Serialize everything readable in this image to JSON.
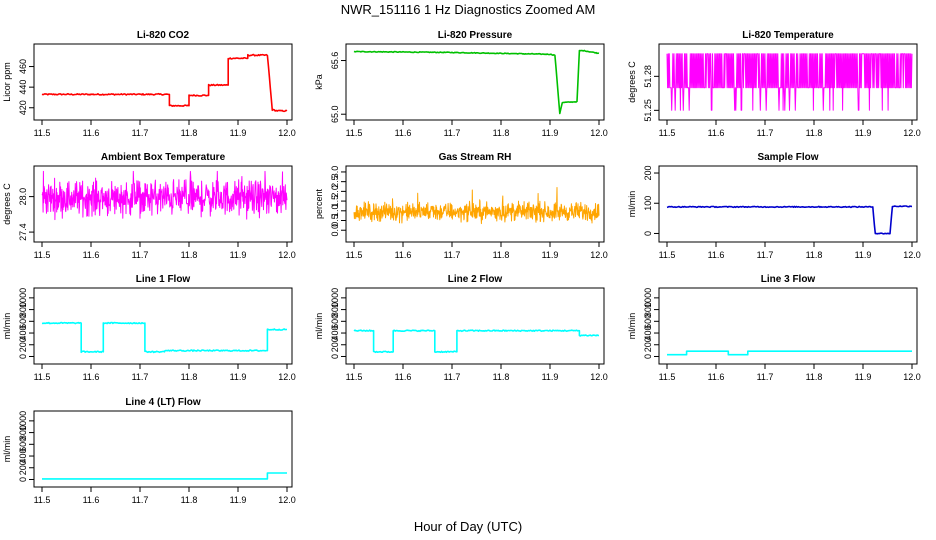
{
  "figure": {
    "title": "NWR_151116  1 Hz Diagnostics Zoomed AM",
    "xlabel": "Hour of Day (UTC)"
  },
  "chart_data": [
    {
      "type": "line",
      "title": "Li-820 CO2",
      "ylabel": "Licor ppm",
      "color": "#ff0000",
      "xlim": [
        11.5,
        12.0
      ],
      "ylim": [
        412,
        478
      ],
      "xticks": [
        "11.5",
        "11.6",
        "11.7",
        "11.8",
        "11.9",
        "12.0"
      ],
      "yticks": [
        420,
        440,
        460
      ],
      "series": [
        {
          "name": "CO2",
          "x": [
            11.5,
            11.76,
            11.76,
            11.8,
            11.8,
            11.84,
            11.84,
            11.88,
            11.88,
            11.92,
            11.92,
            11.96,
            11.97,
            11.98,
            12.0
          ],
          "y": [
            433,
            433,
            422,
            422,
            432,
            432,
            442,
            442,
            468,
            468,
            471,
            471,
            418,
            417,
            417
          ],
          "noise": 0.6
        }
      ]
    },
    {
      "type": "line",
      "title": "Li-820 Pressure",
      "ylabel": "kPa",
      "color": "#00c000",
      "xlim": [
        11.5,
        12.0
      ],
      "ylim": [
        64.98,
        65.74
      ],
      "xticks": [
        "11.5",
        "11.6",
        "11.7",
        "11.8",
        "11.9",
        "12.0"
      ],
      "yticks": [
        65.0,
        65.6
      ],
      "ytickLabels": [
        "65.0",
        "65.6"
      ],
      "series": [
        {
          "name": "pressure",
          "x": [
            11.5,
            11.7,
            11.9,
            11.91,
            11.92,
            11.925,
            11.955,
            11.96,
            11.97,
            12.0
          ],
          "y": [
            65.7,
            65.69,
            65.67,
            65.66,
            65.01,
            65.13,
            65.14,
            65.71,
            65.71,
            65.68
          ],
          "noise": 0.004
        }
      ]
    },
    {
      "type": "line",
      "title": "Li-820 Temperature",
      "ylabel": "degrees C",
      "color": "#ff00ff",
      "xlim": [
        11.5,
        12.0
      ],
      "ylim": [
        51.245,
        51.305
      ],
      "xticks": [
        "11.5",
        "11.6",
        "11.7",
        "11.8",
        "11.9",
        "12.0"
      ],
      "yticks": [
        51.25,
        51.28
      ],
      "ytickLabels": [
        "51.25",
        "51.28"
      ],
      "series": [
        {
          "name": "temperature",
          "mode": "quantized",
          "levels": [
            51.25,
            51.27,
            51.3
          ],
          "x": [
            11.5,
            12.0
          ]
        }
      ]
    },
    {
      "type": "line",
      "title": "Ambient Box Temperature",
      "ylabel": "degrees C",
      "color": "#ff00ff",
      "xlim": [
        11.5,
        12.0
      ],
      "ylim": [
        27.3,
        28.45
      ],
      "xticks": [
        "11.5",
        "11.6",
        "11.7",
        "11.8",
        "11.9",
        "12.0"
      ],
      "yticks": [
        27.4,
        28.0
      ],
      "ytickLabels": [
        "27.4",
        "28.0"
      ],
      "series": [
        {
          "name": "box_temp",
          "mode": "noisy",
          "x": [
            11.5,
            12.0
          ],
          "mean": 27.98,
          "spread": 0.22
        }
      ]
    },
    {
      "type": "line",
      "title": "Gas Stream RH",
      "ylabel": "percent",
      "color": "#ffa500",
      "xlim": [
        11.5,
        12.0
      ],
      "ylim": [
        -0.4,
        3.1
      ],
      "xticks": [
        "11.5",
        "11.6",
        "11.7",
        "11.8",
        "11.9",
        "12.0"
      ],
      "yticks": [
        0.0,
        0.5,
        1.0,
        1.5,
        2.0,
        2.5,
        3.0
      ],
      "ytickLabels": [
        "0.0",
        "0.5",
        "1.0",
        "1.5",
        "2.0",
        "2.5",
        "3.0"
      ],
      "series": [
        {
          "name": "rh",
          "mode": "noisy",
          "x": [
            11.5,
            12.0
          ],
          "mean": 0.95,
          "spread": 0.35
        }
      ]
    },
    {
      "type": "line",
      "title": "Sample Flow",
      "ylabel": "ml/min",
      "color": "#0000cd",
      "xlim": [
        11.5,
        12.0
      ],
      "ylim": [
        -15,
        210
      ],
      "xticks": [
        "11.5",
        "11.6",
        "11.7",
        "11.8",
        "11.9",
        "12.0"
      ],
      "yticks": [
        0,
        100,
        200
      ],
      "series": [
        {
          "name": "sample_flow",
          "x": [
            11.5,
            11.92,
            11.925,
            11.955,
            11.96,
            12.0
          ],
          "y": [
            88,
            88,
            0,
            0,
            90,
            90
          ],
          "noise": 1.5
        }
      ]
    },
    {
      "type": "line",
      "title": "Line 1 Flow",
      "ylabel": "ml/min",
      "color": "#00ffff",
      "xlim": [
        11.5,
        12.0
      ],
      "ylim": [
        -60,
        1100
      ],
      "xticks": [
        "11.5",
        "11.6",
        "11.7",
        "11.8",
        "11.9",
        "12.0"
      ],
      "yticks": [
        0,
        200,
        400,
        600,
        800,
        1000
      ],
      "series": [
        {
          "name": "line1",
          "x": [
            11.5,
            11.58,
            11.58,
            11.625,
            11.625,
            11.71,
            11.71,
            11.75,
            11.75,
            11.96,
            11.96,
            12.0
          ],
          "y": [
            570,
            570,
            80,
            80,
            570,
            570,
            80,
            80,
            100,
            100,
            460,
            460
          ],
          "noise": 10
        }
      ]
    },
    {
      "type": "line",
      "title": "Line 2 Flow",
      "ylabel": "ml/min",
      "color": "#00ffff",
      "xlim": [
        11.5,
        12.0
      ],
      "ylim": [
        -60,
        1100
      ],
      "xticks": [
        "11.5",
        "11.6",
        "11.7",
        "11.8",
        "11.9",
        "12.0"
      ],
      "yticks": [
        0,
        200,
        400,
        600,
        800,
        1000
      ],
      "series": [
        {
          "name": "line2",
          "x": [
            11.5,
            11.54,
            11.54,
            11.58,
            11.58,
            11.665,
            11.665,
            11.71,
            11.71,
            11.96,
            11.96,
            12.0
          ],
          "y": [
            440,
            440,
            80,
            80,
            440,
            440,
            80,
            80,
            440,
            440,
            360,
            360
          ],
          "noise": 10
        }
      ]
    },
    {
      "type": "line",
      "title": "Line 3 Flow",
      "ylabel": "ml/min",
      "color": "#00ffff",
      "xlim": [
        11.5,
        12.0
      ],
      "ylim": [
        -60,
        1100
      ],
      "xticks": [
        "11.5",
        "11.6",
        "11.7",
        "11.8",
        "11.9",
        "12.0"
      ],
      "yticks": [
        0,
        200,
        400,
        600,
        800,
        1000
      ],
      "series": [
        {
          "name": "line3",
          "x": [
            11.5,
            11.54,
            11.54,
            11.625,
            11.625,
            11.665,
            11.665,
            12.0
          ],
          "y": [
            30,
            30,
            90,
            90,
            30,
            30,
            90,
            90
          ],
          "noise": 0
        }
      ]
    },
    {
      "type": "line",
      "title": "Line 4 (LT) Flow",
      "ylabel": "ml/min",
      "color": "#00ffff",
      "xlim": [
        11.5,
        12.0
      ],
      "ylim": [
        -60,
        1100
      ],
      "xticks": [
        "11.5",
        "11.6",
        "11.7",
        "11.8",
        "11.9",
        "12.0"
      ],
      "yticks": [
        0,
        200,
        400,
        600,
        800,
        1000
      ],
      "series": [
        {
          "name": "line4",
          "x": [
            11.5,
            11.96,
            11.96,
            12.0
          ],
          "y": [
            10,
            10,
            110,
            110
          ],
          "noise": 0
        }
      ]
    }
  ]
}
